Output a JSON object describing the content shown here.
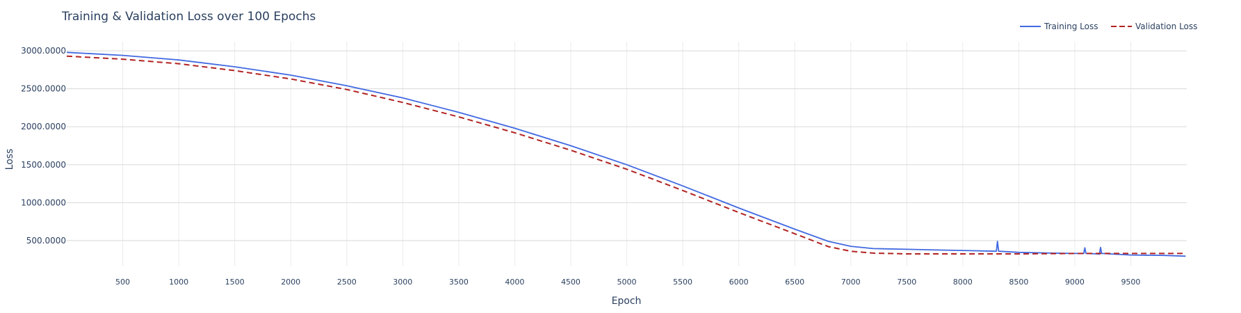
{
  "chart_data": {
    "type": "line",
    "title": "Training & Validation Loss over 100 Epochs",
    "xlabel": "Epoch",
    "ylabel": "Loss",
    "xlim": [
      0,
      10000
    ],
    "ylim": [
      160,
      3120
    ],
    "x_ticks": [
      500,
      1000,
      1500,
      2000,
      2500,
      3000,
      3500,
      4000,
      4500,
      5000,
      5500,
      6000,
      6500,
      7000,
      7500,
      8000,
      8500,
      9000,
      9500
    ],
    "x_tick_labels": [
      "500",
      "1000",
      "1500",
      "2000",
      "2500",
      "3000",
      "3500",
      "4000",
      "4500",
      "5000",
      "5500",
      "6000",
      "6500",
      "7000",
      "7500",
      "8000",
      "8500",
      "9000",
      "9500"
    ],
    "y_ticks": [
      500,
      1000,
      1500,
      2000,
      2500,
      3000
    ],
    "y_tick_labels": [
      "500.0000",
      "1000.0000",
      "1500.0000",
      "2000.0000",
      "2500.0000",
      "3000.0000"
    ],
    "grid": true,
    "legend_position": "top-right",
    "series": [
      {
        "name": "Training Loss",
        "color": "#4169e1",
        "dash": "solid",
        "x": [
          0,
          500,
          1000,
          1500,
          2000,
          2500,
          3000,
          3500,
          4000,
          4500,
          5000,
          5500,
          6000,
          6500,
          6800,
          7000,
          7200,
          7500,
          7800,
          8000,
          8300,
          8310,
          8320,
          8500,
          8800,
          9000,
          9080,
          9090,
          9100,
          9200,
          9220,
          9230,
          9240,
          9500,
          9800,
          9990
        ],
        "y": [
          2980,
          2940,
          2880,
          2790,
          2680,
          2540,
          2380,
          2190,
          1980,
          1750,
          1500,
          1220,
          930,
          650,
          490,
          425,
          395,
          385,
          375,
          370,
          360,
          490,
          360,
          345,
          335,
          330,
          330,
          405,
          330,
          325,
          320,
          410,
          330,
          310,
          305,
          295
        ]
      },
      {
        "name": "Validation Loss",
        "color": "#b22222",
        "dash": "dashed",
        "x": [
          0,
          500,
          1000,
          1500,
          2000,
          2500,
          3000,
          3500,
          4000,
          4500,
          5000,
          5500,
          6000,
          6500,
          6800,
          7000,
          7200,
          7500,
          8000,
          8500,
          9000,
          9500,
          9990
        ],
        "y": [
          2930,
          2890,
          2830,
          2740,
          2630,
          2490,
          2320,
          2130,
          1920,
          1690,
          1440,
          1160,
          870,
          590,
          420,
          360,
          335,
          325,
          325,
          325,
          330,
          330,
          330
        ]
      }
    ]
  }
}
